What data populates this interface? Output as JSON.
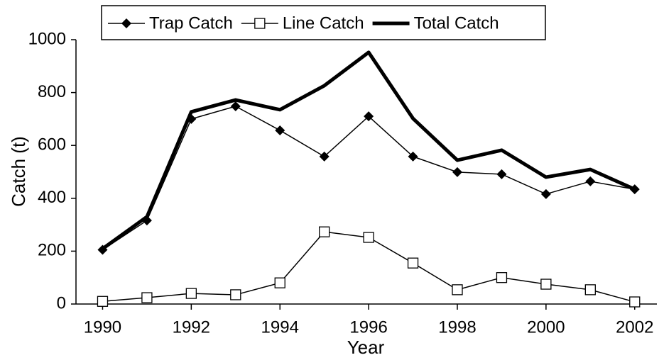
{
  "chart_data": {
    "type": "line",
    "x": [
      1990,
      1991,
      1992,
      1993,
      1994,
      1995,
      1996,
      1997,
      1998,
      1999,
      2000,
      2001,
      2002
    ],
    "series": [
      {
        "name": "Trap Catch",
        "color": "#000000",
        "marker": "diamond",
        "line_width": 1.5,
        "values": [
          205,
          316,
          700,
          748,
          657,
          558,
          710,
          558,
          499,
          491,
          416,
          464,
          434
        ]
      },
      {
        "name": "Line Catch",
        "color": "#000000",
        "marker": "square",
        "line_width": 1.5,
        "values": [
          10,
          24,
          40,
          35,
          80,
          273,
          252,
          155,
          54,
          100,
          75,
          54,
          8
        ]
      },
      {
        "name": "Total Catch",
        "color": "#000000",
        "marker": "none",
        "line_width": 5,
        "values": [
          209,
          330,
          727,
          772,
          735,
          826,
          952,
          702,
          544,
          582,
          480,
          509,
          434
        ]
      }
    ],
    "x_label": "Year",
    "y_label": "Catch (t)",
    "xlim": [
      1989.4,
      2002.5
    ],
    "xticks": [
      1990,
      1992,
      1994,
      1996,
      1998,
      2000,
      2002
    ],
    "ylim": [
      0,
      1000
    ],
    "yticks": [
      0,
      200,
      400,
      600,
      800,
      1000
    ],
    "legend": "top"
  }
}
